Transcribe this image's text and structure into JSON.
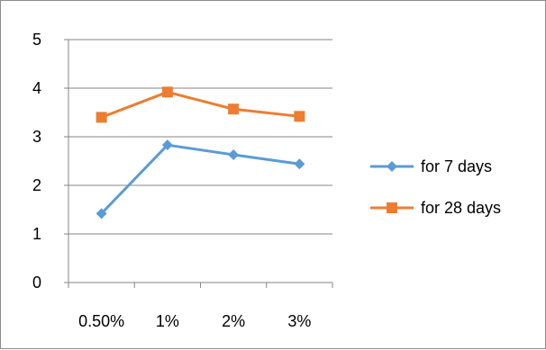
{
  "chart_data": {
    "type": "line",
    "title": "",
    "xlabel": "",
    "ylabel": "",
    "categories": [
      "0.50%",
      "1%",
      "2%",
      "3%"
    ],
    "ylim": [
      0,
      5
    ],
    "yticks": [
      "0",
      "1",
      "2",
      "3",
      "4",
      "5"
    ],
    "grid": "horizontal",
    "legend_position": "right",
    "series": [
      {
        "name": "for 7 days",
        "values": [
          1.42,
          2.83,
          2.63,
          2.44
        ],
        "color": "#5b9bd5",
        "marker": "diamond"
      },
      {
        "name": "for 28 days",
        "values": [
          3.4,
          3.92,
          3.57,
          3.42
        ],
        "color": "#ed7d31",
        "marker": "square"
      }
    ]
  }
}
